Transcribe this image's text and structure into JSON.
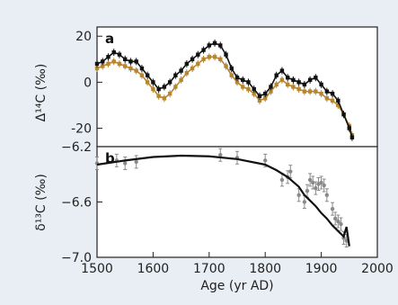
{
  "chart_data": [
    {
      "panel": "a",
      "type": "line",
      "ylabel": "Δ¹⁴C (‰)",
      "ylim": [
        -28,
        24
      ],
      "yticks": [
        20,
        0,
        -20
      ],
      "series": [
        {
          "color": "#111111",
          "x": [
            1500,
            1510,
            1520,
            1530,
            1540,
            1550,
            1560,
            1570,
            1580,
            1590,
            1600,
            1610,
            1620,
            1630,
            1640,
            1650,
            1660,
            1670,
            1680,
            1690,
            1700,
            1710,
            1720,
            1730,
            1740,
            1750,
            1760,
            1770,
            1780,
            1790,
            1800,
            1810,
            1820,
            1830,
            1840,
            1850,
            1860,
            1870,
            1880,
            1890,
            1900,
            1910,
            1920,
            1930,
            1940,
            1950,
            1955
          ],
          "y": [
            8,
            9,
            11,
            13,
            12,
            10,
            9,
            9,
            6,
            3,
            0,
            -3,
            -2,
            0,
            3,
            5,
            8,
            10,
            12,
            14,
            16,
            17,
            16,
            12,
            6,
            2,
            1,
            0,
            -3,
            -6,
            -5,
            -2,
            3,
            5,
            2,
            1,
            0,
            -1,
            1,
            2,
            -1,
            -4,
            -5,
            -8,
            -14,
            -20,
            -24
          ]
        },
        {
          "color": "#b8862e",
          "x": [
            1500,
            1510,
            1520,
            1530,
            1540,
            1550,
            1560,
            1570,
            1580,
            1590,
            1600,
            1610,
            1620,
            1630,
            1640,
            1650,
            1660,
            1670,
            1680,
            1690,
            1700,
            1710,
            1720,
            1730,
            1740,
            1750,
            1760,
            1770,
            1780,
            1790,
            1800,
            1810,
            1820,
            1830,
            1840,
            1850,
            1860,
            1870,
            1880,
            1890,
            1900,
            1910,
            1920,
            1930,
            1940,
            1950,
            1955
          ],
          "y": [
            6,
            7,
            8,
            9,
            8,
            7,
            6,
            5,
            3,
            0,
            -3,
            -6,
            -7,
            -5,
            -2,
            1,
            4,
            6,
            8,
            10,
            11,
            11,
            10,
            7,
            3,
            0,
            -2,
            -3,
            -5,
            -8,
            -7,
            -4,
            -1,
            1,
            -1,
            -2,
            -3,
            -4,
            -4,
            -4,
            -5,
            -7,
            -8,
            -10,
            -14,
            -19,
            -23
          ]
        }
      ]
    },
    {
      "panel": "b",
      "type": "scatter",
      "ylabel": "δ¹³C (‰)",
      "ylim": [
        -7.0,
        -6.2
      ],
      "yticks": [
        -6.2,
        -6.6,
        -7.0
      ],
      "xlabel": "Age (yr AD)",
      "xlim": [
        1500,
        2000
      ],
      "xticks": [
        1500,
        1600,
        1700,
        1800,
        1900,
        2000
      ],
      "fit_line": {
        "color": "#111111",
        "x": [
          1500,
          1550,
          1600,
          1650,
          1700,
          1750,
          1800,
          1820,
          1840,
          1860,
          1870,
          1880,
          1890,
          1900,
          1910,
          1920,
          1930,
          1940,
          1945,
          1950
        ],
        "y": [
          -6.33,
          -6.3,
          -6.275,
          -6.265,
          -6.27,
          -6.29,
          -6.33,
          -6.37,
          -6.42,
          -6.49,
          -6.55,
          -6.59,
          -6.63,
          -6.68,
          -6.72,
          -6.77,
          -6.81,
          -6.85,
          -6.78,
          -6.92
        ]
      },
      "points": {
        "color": "#8a8a8a",
        "x": [
          1500,
          1535,
          1550,
          1570,
          1720,
          1750,
          1800,
          1830,
          1840,
          1845,
          1860,
          1870,
          1875,
          1880,
          1885,
          1890,
          1895,
          1900,
          1905,
          1910,
          1920,
          1925,
          1930,
          1935,
          1940,
          1945
        ],
        "y": [
          -6.32,
          -6.3,
          -6.32,
          -6.31,
          -6.26,
          -6.28,
          -6.3,
          -6.44,
          -6.42,
          -6.38,
          -6.55,
          -6.6,
          -6.52,
          -6.44,
          -6.46,
          -6.5,
          -6.47,
          -6.46,
          -6.48,
          -6.55,
          -6.65,
          -6.72,
          -6.74,
          -6.76,
          -6.86,
          -6.88
        ]
      }
    }
  ],
  "labels": {
    "panel_a": "a",
    "panel_b": "b"
  }
}
